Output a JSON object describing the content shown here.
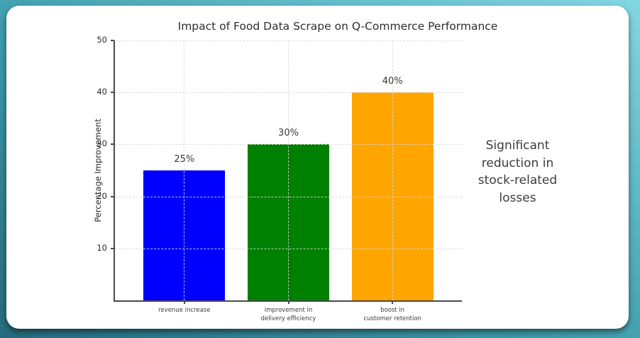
{
  "chart_data": {
    "type": "bar",
    "title": "Impact of Food Data Scrape on Q-Commerce Performance",
    "ylabel": "Percentage Improvement",
    "xlabel": "",
    "ylim": [
      0,
      50
    ],
    "yticks": [
      10,
      20,
      30,
      40,
      50
    ],
    "grid": true,
    "legend": false,
    "categories": [
      "revenue increase",
      "improvement in delivery efficiency",
      "boost in customer retention"
    ],
    "category_lines": [
      [
        "revenue increase"
      ],
      [
        "improvement in",
        "delivery efficiency"
      ],
      [
        "boost in",
        "customer retention"
      ]
    ],
    "values": [
      25,
      30,
      40
    ],
    "value_labels": [
      "25%",
      "30%",
      "40%"
    ],
    "bar_colors": [
      "#0000ff",
      "#008000",
      "#ffa500"
    ]
  },
  "annotation": {
    "text": "Significant reduction in stock-related losses",
    "lines": [
      "Significant",
      "reduction in",
      "stock-related",
      "losses"
    ]
  },
  "theme": {
    "frame_gradient_dark": "#256b7c",
    "frame_gradient_light": "#82d7e3",
    "card_background": "#ffffff",
    "axis_color": "#4a4a4a",
    "grid_color": "#d9d9d9",
    "text_color": "#3a3a3a"
  }
}
